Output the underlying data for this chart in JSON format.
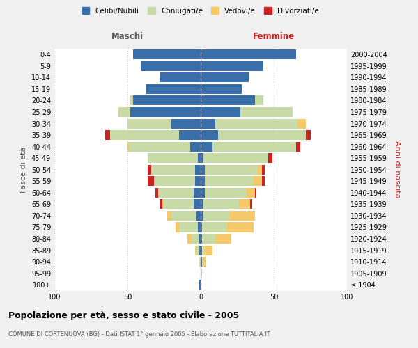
{
  "age_groups": [
    "100+",
    "95-99",
    "90-94",
    "85-89",
    "80-84",
    "75-79",
    "70-74",
    "65-69",
    "60-64",
    "55-59",
    "50-54",
    "45-49",
    "40-44",
    "35-39",
    "30-34",
    "25-29",
    "20-24",
    "15-19",
    "10-14",
    "5-9",
    "0-4"
  ],
  "birth_years": [
    "≤ 1904",
    "1905-1909",
    "1910-1914",
    "1915-1919",
    "1920-1924",
    "1925-1929",
    "1930-1934",
    "1935-1939",
    "1940-1944",
    "1945-1949",
    "1950-1954",
    "1955-1959",
    "1960-1964",
    "1965-1969",
    "1970-1974",
    "1975-1979",
    "1980-1984",
    "1985-1989",
    "1990-1994",
    "1995-1999",
    "2000-2004"
  ],
  "colors": {
    "celibi": "#3a6ea8",
    "coniugati": "#c8daa6",
    "vedovi": "#f5c96a",
    "divorziati": "#cc2222"
  },
  "males": {
    "celibi": [
      1,
      0,
      0,
      1,
      1,
      2,
      3,
      5,
      5,
      4,
      4,
      2,
      7,
      15,
      20,
      48,
      46,
      37,
      28,
      41,
      46
    ],
    "coniugati": [
      0,
      0,
      1,
      2,
      5,
      13,
      17,
      20,
      24,
      28,
      30,
      34,
      42,
      47,
      30,
      8,
      2,
      0,
      0,
      0,
      0
    ],
    "vedovi": [
      0,
      0,
      0,
      1,
      3,
      2,
      3,
      1,
      0,
      0,
      0,
      0,
      1,
      0,
      0,
      0,
      0,
      0,
      0,
      0,
      0
    ],
    "divorziati": [
      0,
      0,
      0,
      0,
      0,
      0,
      0,
      2,
      2,
      4,
      2,
      0,
      0,
      3,
      0,
      0,
      0,
      0,
      0,
      0,
      0
    ]
  },
  "females": {
    "nubili": [
      0,
      0,
      1,
      1,
      1,
      1,
      2,
      2,
      3,
      3,
      3,
      2,
      8,
      12,
      10,
      27,
      37,
      28,
      33,
      43,
      65
    ],
    "coniugate": [
      0,
      1,
      1,
      2,
      9,
      17,
      18,
      24,
      28,
      33,
      36,
      44,
      57,
      60,
      56,
      36,
      6,
      0,
      0,
      0,
      0
    ],
    "vedove": [
      0,
      0,
      2,
      5,
      11,
      18,
      17,
      8,
      6,
      6,
      3,
      0,
      0,
      0,
      6,
      0,
      0,
      0,
      0,
      0,
      0
    ],
    "divorziate": [
      0,
      0,
      0,
      0,
      0,
      0,
      0,
      1,
      1,
      2,
      2,
      3,
      3,
      3,
      0,
      0,
      0,
      0,
      0,
      0,
      0
    ]
  },
  "title": "Popolazione per età, sesso e stato civile - 2005",
  "subtitle": "COMUNE DI CORTENUOVA (BG) - Dati ISTAT 1° gennaio 2005 - Elaborazione TUTTITALIA.IT",
  "header_left": "Maschi",
  "header_right": "Femmine",
  "ylabel_left": "Fasce di età",
  "ylabel_right": "Anni di nascita",
  "xlim": 100,
  "legend_labels": [
    "Celibi/Nubili",
    "Coniugati/e",
    "Vedovi/e",
    "Divorziati/e"
  ],
  "bg_color": "#f0f0f0",
  "plot_bg_color": "#ffffff"
}
